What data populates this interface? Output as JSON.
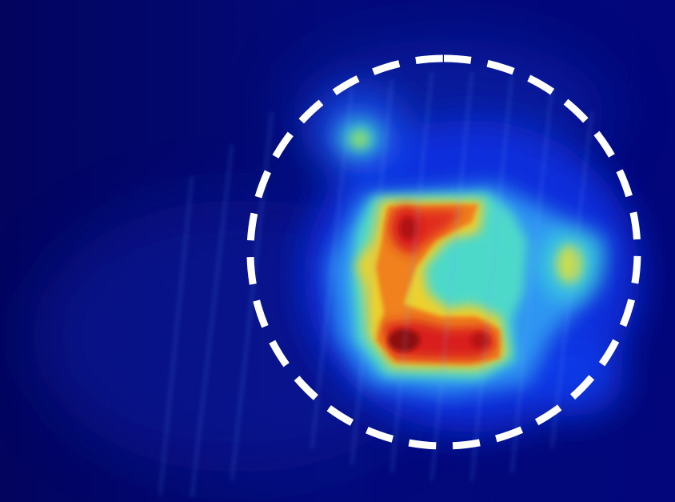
{
  "image": {
    "kind": "heatmap-overlay",
    "colormap": "jet",
    "colors": {
      "background": "#02046a",
      "low": "#0a1ad8",
      "mid_low": "#2a8cf0",
      "mid": "#3fd6d8",
      "mid_high": "#9be05a",
      "high": "#f0d02a",
      "higher": "#f07a1a",
      "peak": "#d81a1a",
      "core": "#8a0a0a",
      "marker": "#ffffff"
    },
    "marker": {
      "shape": "circle",
      "style": "dashed"
    }
  }
}
